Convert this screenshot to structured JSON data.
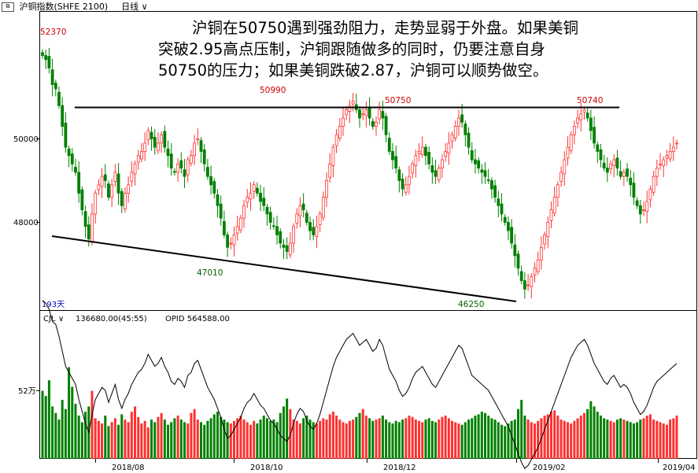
{
  "window": {
    "title": "沪铜指数(SHFE 2100)",
    "period": "日线"
  },
  "annotation": {
    "lines": [
      "沪铜在50750遇到强劲阻力，走势显弱于外盘。如果美铜",
      "突破2.95高点压制，沪铜跟随做多的同时，仍要注意自身",
      "50750的压力；如果美铜跌破2.87，沪铜可以顺势做空。"
    ]
  },
  "price_panel": {
    "y_ticks": [
      "50000",
      "48000"
    ],
    "bars_count_label": "193天",
    "price_labels": [
      {
        "text": "52370",
        "kind": "high"
      },
      {
        "text": "50990",
        "kind": "high"
      },
      {
        "text": "50750",
        "kind": "high"
      },
      {
        "text": "50740",
        "kind": "high"
      },
      {
        "text": "47010",
        "kind": "low"
      },
      {
        "text": "46250",
        "kind": "low"
      }
    ]
  },
  "volume_panel": {
    "indicator": "CJL",
    "value_text": "136680.00(45:55)",
    "opi_text": "OPID 564588.00",
    "y_tick": "52万"
  },
  "x_ticks": [
    "2018/08",
    "2018/10",
    "2018/12",
    "2019/02",
    "2019/04"
  ],
  "colors": {
    "up": "#ff3030",
    "down": "#008000",
    "line": "#000000"
  },
  "chart_data": {
    "type": "candlestick",
    "period": "daily",
    "n_bars": 193,
    "date_range": [
      "2018/06",
      "2019/04"
    ],
    "y_ticks": [
      50000,
      48000
    ],
    "series_approx_close": [
      52000,
      51900,
      51700,
      51300,
      51200,
      50800,
      50300,
      49800,
      49600,
      49400,
      49200,
      48700,
      48300,
      47900,
      47600,
      48200,
      48700,
      48900,
      49100,
      49000,
      48600,
      48900,
      49200,
      48700,
      48400,
      48700,
      48900,
      49200,
      49400,
      49600,
      49700,
      49900,
      50200,
      50000,
      49800,
      49900,
      50100,
      49800,
      49600,
      49300,
      49200,
      49400,
      49300,
      49100,
      49500,
      49600,
      49900,
      50000,
      49700,
      49400,
      49100,
      48900,
      48700,
      48400,
      48100,
      47700,
      47400,
      47500,
      47700,
      47900,
      48100,
      48400,
      48600,
      48700,
      48900,
      48700,
      48500,
      48400,
      48200,
      48000,
      47900,
      47700,
      47500,
      47400,
      47300,
      47500,
      47900,
      48200,
      48400,
      48300,
      48000,
      47800,
      47700,
      47900,
      48200,
      48600,
      49000,
      49400,
      49800,
      50100,
      50300,
      50500,
      50700,
      50800,
      50900,
      50700,
      50500,
      50600,
      50700,
      50500,
      50300,
      50400,
      50700,
      50500,
      50100,
      49700,
      49500,
      49300,
      49000,
      48800,
      48900,
      49100,
      49400,
      49600,
      49700,
      49800,
      49600,
      49400,
      49200,
      49100,
      49300,
      49500,
      49700,
      49900,
      50100,
      50300,
      50500,
      50400,
      50100,
      49800,
      49500,
      49400,
      49300,
      49200,
      49100,
      49000,
      48800,
      48600,
      48400,
      48200,
      48000,
      47800,
      47500,
      47200,
      46900,
      46600,
      46400,
      46500,
      46700,
      46900,
      47100,
      47400,
      47700,
      48000,
      48300,
      48600,
      48900,
      49200,
      49500,
      49800,
      50100,
      50300,
      50500,
      50600,
      50700,
      50500,
      50200,
      49900,
      49700,
      49500,
      49300,
      49200,
      49400,
      49500,
      49300,
      49100,
      49200,
      49100,
      48900,
      48600,
      48400,
      48200,
      48300,
      48500,
      48800,
      49100,
      49300,
      49400,
      49500,
      49600,
      49700,
      49800,
      49900
    ],
    "key_levels": {
      "resistance": 50750,
      "highs": [
        {
          "label": "52370",
          "value": 52370
        },
        {
          "label": "50990",
          "value": 50990
        },
        {
          "label": "50750",
          "value": 50750
        },
        {
          "label": "50740",
          "value": 50740
        }
      ],
      "lows": [
        {
          "label": "47010",
          "value": 47010
        },
        {
          "label": "46250",
          "value": 46250
        }
      ]
    },
    "trendlines": [
      {
        "kind": "horizontal-resistance",
        "value": 50750
      },
      {
        "kind": "descending-support",
        "from_value": 47700,
        "to_value": 46250
      }
    ],
    "volume_series_approx": [
      52,
      48,
      60,
      40,
      35,
      30,
      45,
      38,
      70,
      55,
      42,
      33,
      28,
      36,
      40,
      52,
      31,
      29,
      27,
      33,
      25,
      28,
      31,
      26,
      34,
      30,
      28,
      36,
      40,
      32,
      27,
      29,
      24,
      30,
      28,
      32,
      35,
      30,
      26,
      28,
      31,
      33,
      30,
      28,
      27,
      35,
      38,
      30,
      28,
      26,
      29,
      31,
      34,
      36,
      32,
      30,
      28,
      27,
      29,
      31,
      33,
      30,
      28,
      26,
      29,
      27,
      30,
      33,
      31,
      29,
      30,
      28,
      35,
      40,
      46,
      38,
      30,
      29,
      27,
      31,
      33,
      30,
      28,
      27,
      29,
      31,
      30,
      34,
      36,
      33,
      30,
      28,
      27,
      29,
      30,
      32,
      35,
      38,
      33,
      31,
      29,
      30,
      31,
      33,
      30,
      28,
      27,
      29,
      28,
      30,
      31,
      33,
      32,
      30,
      29,
      28,
      30,
      31,
      29,
      28,
      30,
      32,
      33,
      31,
      29,
      28,
      27,
      26,
      28,
      30,
      31,
      33,
      34,
      36,
      35,
      33,
      31,
      30,
      28,
      26,
      25,
      27,
      29,
      30,
      38,
      45,
      33,
      30,
      28,
      27,
      29,
      31,
      33,
      34,
      36,
      37,
      33,
      30,
      29,
      28,
      27,
      29,
      31,
      33,
      35,
      38,
      44,
      40,
      36,
      33,
      31,
      30,
      29,
      28,
      30,
      31,
      30,
      29,
      28,
      27,
      28,
      30,
      31,
      33,
      34,
      30,
      29,
      28,
      27,
      26,
      30,
      31,
      33
    ],
    "volume_unit": "万",
    "volume_y_tick": "52万",
    "x_ticks": [
      "2018/08",
      "2018/10",
      "2018/12",
      "2019/02",
      "2019/04"
    ]
  }
}
